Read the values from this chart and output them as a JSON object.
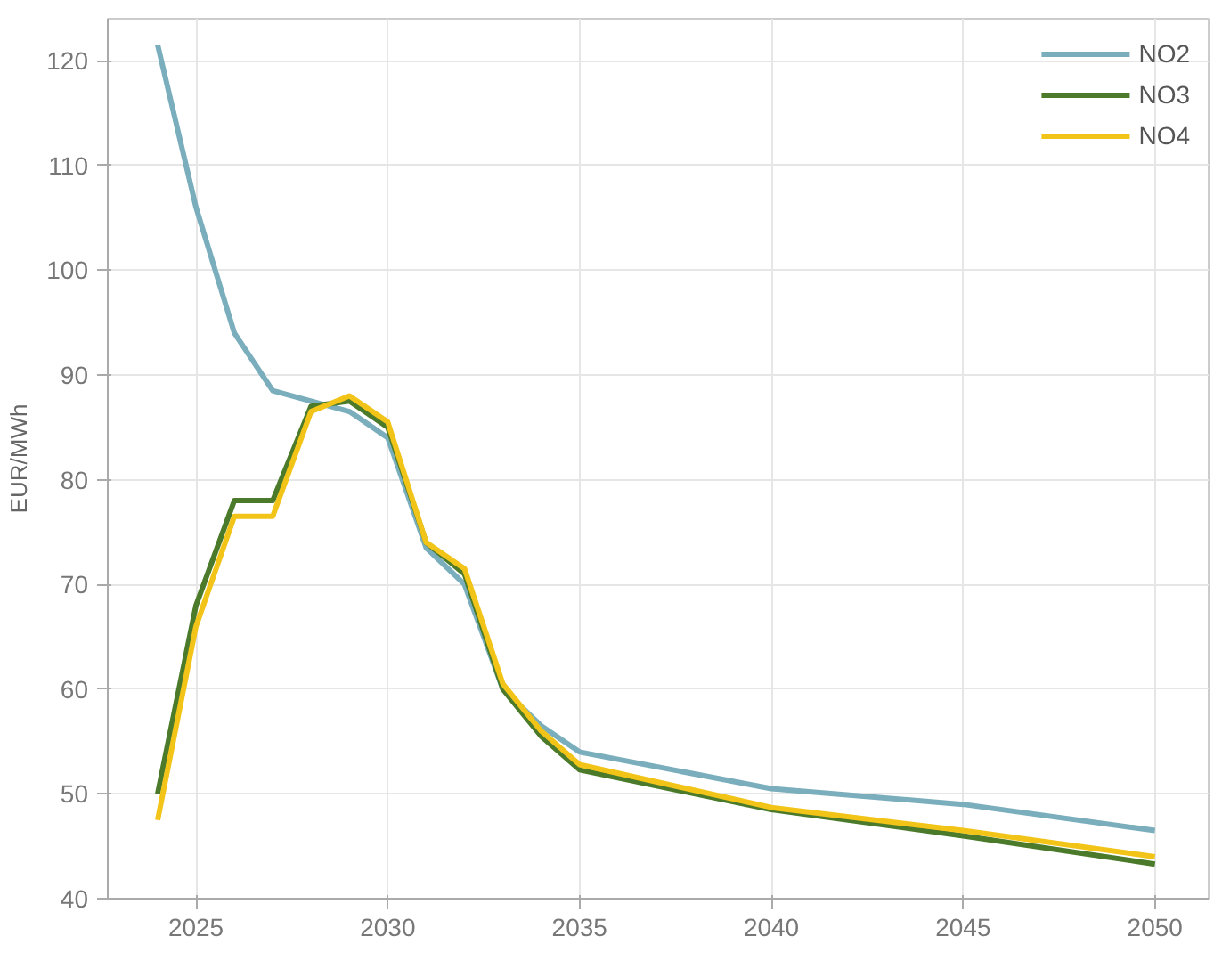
{
  "chart_data": {
    "type": "line",
    "ylabel": "EUR/MWh",
    "x": [
      2024,
      2025,
      2026,
      2027,
      2028,
      2029,
      2030,
      2031,
      2032,
      2033,
      2034,
      2035,
      2040,
      2045,
      2050
    ],
    "series": [
      {
        "name": "NO2",
        "color": "#7aaebc",
        "values": [
          121.5,
          106,
          94,
          88.5,
          87.5,
          86.5,
          84,
          73.5,
          70,
          60,
          56.5,
          54,
          50.5,
          49,
          46.5
        ]
      },
      {
        "name": "NO3",
        "color": "#4a7a2a",
        "values": [
          50,
          68,
          78,
          78,
          87,
          87.5,
          85,
          74,
          71,
          60,
          55.5,
          52.3,
          48.5,
          46,
          43.3
        ]
      },
      {
        "name": "NO4",
        "color": "#f2c418",
        "values": [
          47.5,
          66,
          76.5,
          76.5,
          86.5,
          88,
          85.5,
          74,
          71.5,
          60.5,
          56,
          52.8,
          48.7,
          46.5,
          44
        ]
      }
    ],
    "xlim": [
      2022.7,
      2051.4
    ],
    "ylim": [
      40,
      124
    ],
    "xticks": [
      2025,
      2030,
      2035,
      2040,
      2045,
      2050
    ],
    "yticks": [
      40,
      50,
      60,
      70,
      80,
      90,
      100,
      110,
      120
    ],
    "grid": true,
    "legend": "top right",
    "marker": "none",
    "line_style": "solid"
  }
}
